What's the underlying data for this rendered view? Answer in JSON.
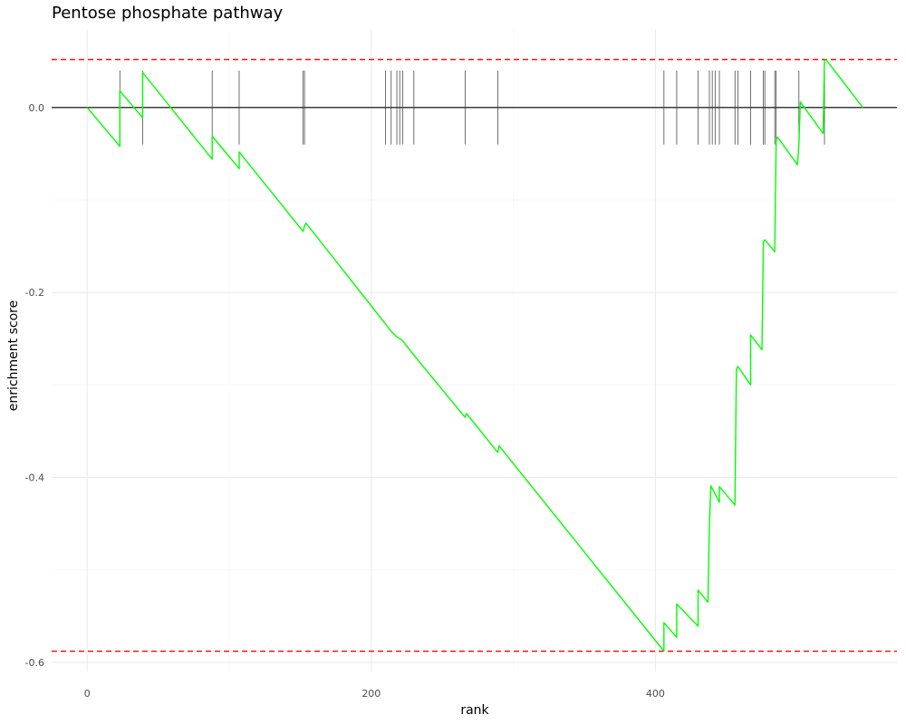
{
  "chart_data": {
    "type": "line",
    "title": "Pentose phosphate pathway",
    "xlabel": "rank",
    "ylabel": "enrichment score",
    "xlim": [
      -25,
      570
    ],
    "ylim": [
      -0.61,
      0.085
    ],
    "x_ticks": [
      0,
      200,
      400
    ],
    "x_tick_labels": [
      "0",
      "200",
      "400"
    ],
    "y_ticks": [
      0.0,
      -0.2,
      -0.4,
      -0.6
    ],
    "y_tick_labels": [
      "0.0",
      "-0.2",
      "-0.4",
      "-0.6"
    ],
    "grid": true,
    "legend": "none",
    "series": [
      {
        "color": "#00ff00",
        "x": [
          0,
          23,
          23,
          39,
          39,
          88,
          88,
          107,
          107,
          152,
          153,
          154,
          210,
          212,
          214,
          218,
          220,
          222,
          230,
          266,
          267,
          289,
          290,
          406,
          406,
          415,
          415,
          430,
          430,
          437,
          438,
          439,
          445,
          445,
          456,
          457,
          458,
          467,
          467,
          475,
          476,
          477,
          484,
          485,
          486,
          500,
          501,
          502,
          518,
          519,
          520,
          546
        ],
        "y": [
          0.0,
          -0.042,
          0.018,
          -0.011,
          0.038,
          -0.056,
          -0.031,
          -0.066,
          -0.048,
          -0.134,
          -0.128,
          -0.125,
          -0.234,
          -0.238,
          -0.242,
          -0.248,
          -0.25,
          -0.252,
          -0.268,
          -0.335,
          -0.331,
          -0.373,
          -0.366,
          -0.588,
          -0.557,
          -0.573,
          -0.537,
          -0.561,
          -0.522,
          -0.535,
          -0.452,
          -0.409,
          -0.427,
          -0.41,
          -0.43,
          -0.283,
          -0.28,
          -0.3,
          -0.246,
          -0.262,
          -0.145,
          -0.143,
          -0.156,
          -0.035,
          -0.032,
          -0.062,
          -0.04,
          0.006,
          -0.028,
          0.051,
          0.052,
          0.0
        ]
      }
    ],
    "hit_ranks": [
      23,
      39,
      88,
      107,
      152,
      153,
      210,
      214,
      218,
      220,
      222,
      230,
      266,
      289,
      406,
      415,
      430,
      438,
      440,
      442,
      445,
      456,
      458,
      467,
      476,
      477,
      484,
      485,
      501,
      519
    ],
    "max_es_line": 0.052,
    "min_es_line": -0.588,
    "reference_lines": [
      {
        "value": 0.052,
        "color": "#ff0000",
        "style": "dashed"
      },
      {
        "value": -0.588,
        "color": "#ff0000",
        "style": "dashed"
      },
      {
        "value": 0.0,
        "color": "#000000",
        "style": "solid"
      }
    ]
  }
}
